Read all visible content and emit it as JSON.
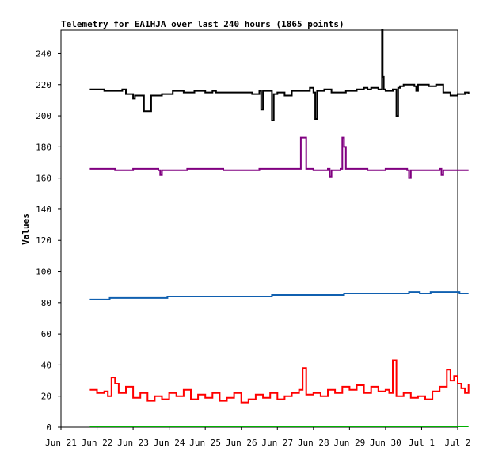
{
  "chart_data": {
    "type": "line",
    "title": "Telemetry for EA1HJA over last 240 hours (1865 points)",
    "xlabel": "",
    "ylabel": "Values",
    "x_ticks": [
      "Jun 21",
      "Jun 22",
      "Jun 23",
      "Jun 24",
      "Jun 25",
      "Jun 26",
      "Jun 27",
      "Jun 28",
      "Jun 29",
      "Jun 30",
      "Jul 1",
      "Jul 2"
    ],
    "y_ticks": [
      0,
      20,
      40,
      60,
      80,
      100,
      120,
      140,
      160,
      180,
      200,
      220,
      240
    ],
    "xlim_days": [
      0,
      11
    ],
    "ylim": [
      0,
      255
    ],
    "grid": false,
    "legend": "none",
    "series": [
      {
        "color": "#000000",
        "x": [
          0.8,
          1.2,
          1.5,
          1.7,
          1.8,
          2.0,
          2.05,
          2.2,
          2.3,
          2.5,
          2.8,
          3.1,
          3.4,
          3.7,
          4.0,
          4.2,
          4.3,
          4.5,
          5.0,
          5.3,
          5.5,
          5.55,
          5.6,
          5.8,
          5.85,
          5.9,
          6.0,
          6.2,
          6.4,
          6.7,
          6.9,
          7.0,
          7.05,
          7.1,
          7.3,
          7.5,
          7.7,
          7.9,
          8.2,
          8.4,
          8.5,
          8.6,
          8.8,
          8.9,
          8.92,
          8.95,
          9.0,
          9.2,
          9.3,
          9.35,
          9.4,
          9.5,
          9.7,
          9.8,
          9.85,
          9.9,
          10.0,
          10.2,
          10.4,
          10.6,
          10.8,
          11.0,
          11.2,
          11.3
        ],
        "values": [
          217,
          216,
          216,
          217,
          214,
          211,
          213,
          213,
          203,
          213,
          214,
          216,
          215,
          216,
          215,
          216,
          215,
          215,
          215,
          214,
          216,
          204,
          216,
          216,
          197,
          214,
          215,
          213,
          216,
          216,
          218,
          215,
          198,
          216,
          217,
          215,
          215,
          216,
          217,
          218,
          217,
          218,
          217,
          255,
          225,
          217,
          216,
          217,
          200,
          218,
          219,
          220,
          220,
          219,
          216,
          220,
          220,
          219,
          220,
          215,
          213,
          214,
          215,
          214
        ]
      },
      {
        "color": "#800080",
        "x": [
          0.8,
          1.5,
          2.0,
          2.7,
          2.75,
          2.8,
          3.5,
          4.5,
          5.5,
          6.6,
          6.65,
          6.7,
          6.75,
          6.8,
          7.0,
          7.4,
          7.45,
          7.5,
          7.75,
          7.8,
          7.85,
          7.9,
          8.5,
          9.0,
          9.6,
          9.65,
          9.7,
          10.5,
          10.55,
          10.6,
          11.3
        ],
        "values": [
          166,
          165,
          166,
          165,
          162,
          165,
          166,
          165,
          166,
          166,
          186,
          186,
          186,
          166,
          165,
          166,
          161,
          165,
          166,
          186,
          180,
          166,
          165,
          166,
          165,
          160,
          165,
          166,
          162,
          165,
          165
        ]
      },
      {
        "color": "#1060b0",
        "x": [
          0.8,
          1.3,
          1.35,
          2.9,
          2.95,
          5.8,
          5.85,
          7.8,
          7.85,
          9.6,
          9.65,
          9.9,
          9.95,
          10.2,
          10.25,
          11.0,
          11.05,
          11.3
        ],
        "values": [
          82,
          82,
          83,
          83,
          84,
          84,
          85,
          85,
          86,
          86,
          87,
          87,
          86,
          86,
          87,
          87,
          86,
          86
        ]
      },
      {
        "color": "#ff0000",
        "x": [
          0.8,
          1.0,
          1.2,
          1.3,
          1.4,
          1.5,
          1.6,
          1.8,
          2.0,
          2.2,
          2.4,
          2.6,
          2.8,
          3.0,
          3.2,
          3.4,
          3.6,
          3.8,
          4.0,
          4.2,
          4.4,
          4.6,
          4.8,
          5.0,
          5.2,
          5.4,
          5.6,
          5.8,
          6.0,
          6.2,
          6.4,
          6.6,
          6.7,
          6.8,
          7.0,
          7.2,
          7.4,
          7.6,
          7.8,
          8.0,
          8.2,
          8.4,
          8.6,
          8.8,
          9.0,
          9.1,
          9.2,
          9.3,
          9.5,
          9.7,
          9.9,
          10.1,
          10.3,
          10.5,
          10.7,
          10.8,
          10.9,
          11.0,
          11.1,
          11.2,
          11.3
        ],
        "values": [
          24,
          22,
          23,
          20,
          32,
          28,
          22,
          26,
          19,
          22,
          17,
          20,
          18,
          22,
          20,
          24,
          18,
          21,
          19,
          22,
          17,
          19,
          22,
          16,
          18,
          21,
          19,
          22,
          18,
          20,
          22,
          24,
          38,
          21,
          22,
          20,
          24,
          22,
          26,
          24,
          27,
          22,
          26,
          23,
          24,
          22,
          43,
          20,
          22,
          19,
          20,
          18,
          23,
          26,
          37,
          30,
          33,
          28,
          25,
          22,
          28
        ]
      },
      {
        "color": "#00b000",
        "x": [
          0.8,
          11.3
        ],
        "values": [
          0.5,
          0.5
        ]
      }
    ]
  }
}
